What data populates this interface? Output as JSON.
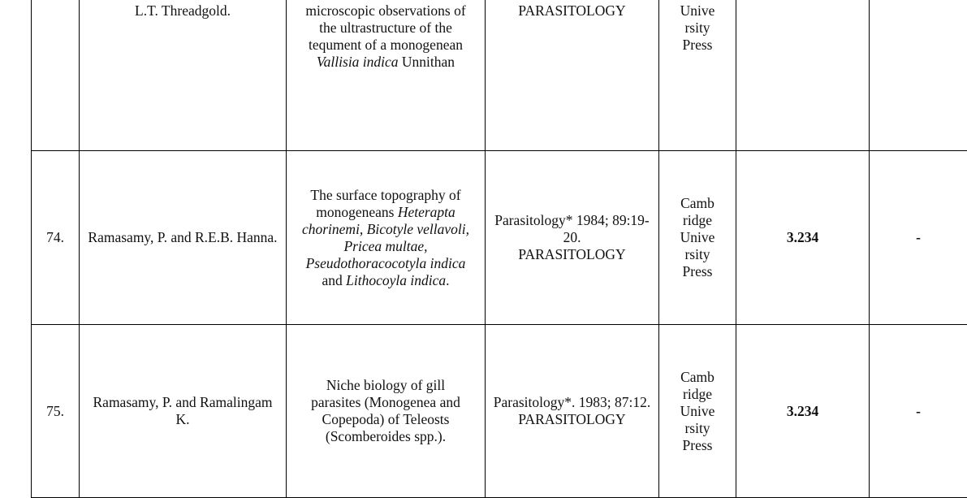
{
  "cover_label": "PARASITOLOGY",
  "table": {
    "rows": [
      {
        "author": "L.T. Threadgold.",
        "title": [
          {
            "text": "microscopic observations of the ultrastructure of the tequment of a monogenean "
          },
          {
            "text": "Vallisia indica",
            "italic": true
          },
          {
            "text": " Unnithan"
          }
        ],
        "publisher": [
          "Unive",
          "rsity",
          "Press"
        ]
      },
      {
        "number": "74.",
        "author": "Ramasamy, P. and R.E.B. Hanna.",
        "title": [
          {
            "text": "The surface topography of monogeneans "
          },
          {
            "text": "Heterapta chorinemi, Bicotyle vellavoli, Pricea multae, Pseudothoracocotyla indica",
            "italic": true
          },
          {
            "text": " and "
          },
          {
            "text": "Lithocoyla indica",
            "italic": true
          },
          {
            "text": "."
          }
        ],
        "journal": "Parasitology* 1984; 89:19-20.",
        "publisher": [
          "Camb",
          "ridge",
          "Unive",
          "rsity",
          "Press"
        ],
        "impact": "3.234",
        "last": "-"
      },
      {
        "number": "75.",
        "author": "Ramasamy, P. and Ramalingam K.",
        "title": [
          {
            "text": "Niche biology of gill parasites (Monogenea and Copepoda) of Teleosts (Scomberoides spp.)."
          }
        ],
        "journal": "Parasitology*. 1983; 87:12.",
        "publisher": [
          "Camb",
          "ridge",
          "Unive",
          "rsity",
          "Press"
        ],
        "impact": "3.234",
        "last": "-"
      }
    ]
  }
}
